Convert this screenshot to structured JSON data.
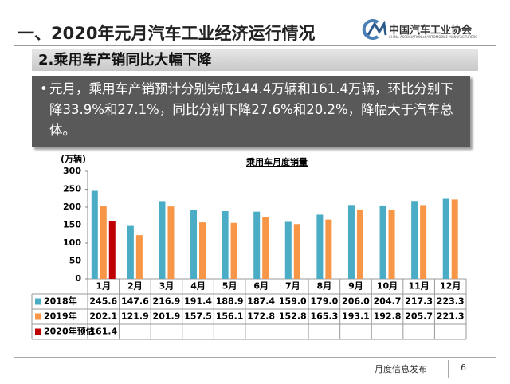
{
  "header": {
    "title": "一、2020年元月汽车工业经济运行情况",
    "logo_cn": "中国汽车工业协会",
    "logo_en": "CHINA ASSOCIATION of AUTOMOBILE MANUFACTURERS"
  },
  "subtitle": "2.乘用车产销同比大幅下降",
  "bullet": "元月，乘用车产销预计分别完成144.4万辆和161.4万辆，环比分别下降33.9%和27.1%，同比分别下降27.6%和20.2%，降幅大于汽车总体。",
  "chart_data": {
    "type": "bar",
    "title": "乘用车月度销量",
    "y_label": "(万辆)",
    "categories": [
      "1月",
      "2月",
      "3月",
      "4月",
      "5月",
      "6月",
      "7月",
      "8月",
      "9月",
      "10月",
      "11月",
      "12月"
    ],
    "series": [
      {
        "name": "2018年",
        "color": "#4bacc6",
        "values": [
          245.6,
          147.6,
          216.9,
          191.4,
          188.9,
          187.4,
          159.0,
          179.0,
          206.0,
          204.7,
          217.3,
          223.3
        ],
        "value_labels": [
          "245.6",
          "147.6",
          "216.9",
          "191.4",
          "188.9",
          "187.4",
          "159.0",
          "179.0",
          "206.0",
          "204.7",
          "217.3",
          "223.3"
        ]
      },
      {
        "name": "2019年",
        "color": "#f79646",
        "values": [
          202.1,
          121.9,
          201.9,
          157.5,
          156.1,
          172.8,
          152.8,
          165.3,
          193.1,
          192.8,
          205.7,
          221.3
        ],
        "value_labels": [
          "202.1",
          "121.9",
          "201.9",
          "157.5",
          "156.1",
          "172.8",
          "152.8",
          "165.3",
          "193.1",
          "192.8",
          "205.7",
          "221.3"
        ]
      },
      {
        "name": "2020年预估",
        "color": "#c00000",
        "values": [
          161.4,
          null,
          null,
          null,
          null,
          null,
          null,
          null,
          null,
          null,
          null,
          null
        ],
        "value_labels": [
          "161.4",
          null,
          null,
          null,
          null,
          null,
          null,
          null,
          null,
          null,
          null,
          null
        ]
      }
    ],
    "ylim": [
      0,
      300
    ],
    "yticks": [
      0,
      50,
      100,
      150,
      200,
      250,
      300
    ]
  },
  "footer": {
    "text": "月度信息发布",
    "page": 6
  }
}
